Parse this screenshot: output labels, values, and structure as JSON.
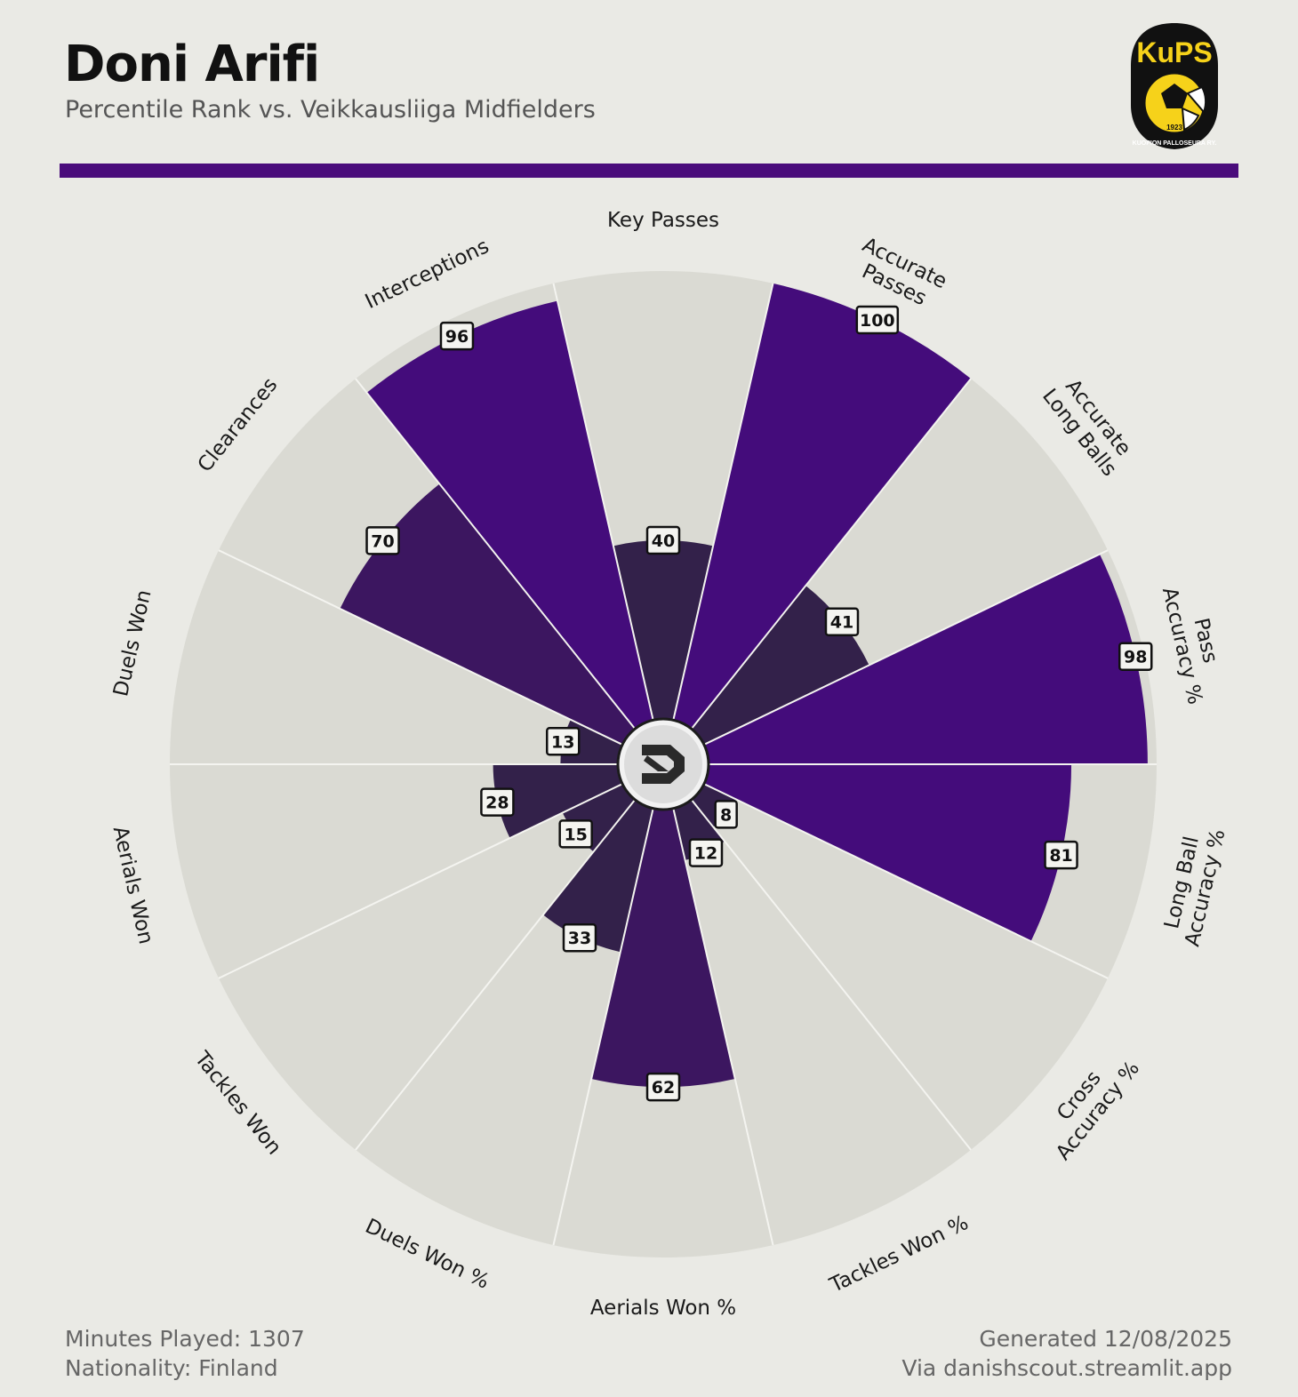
{
  "header": {
    "title": "Doni Arifi",
    "subtitle": "Percentile Rank vs. Veikkausliiga Midfielders",
    "club_logo_text": "KuPS",
    "club_logo_year": "1923",
    "club_logo_ring": "KUOPION PALLOSEURA RY."
  },
  "footer": {
    "minutes": "Minutes Played: 1307",
    "nationality": "Nationality: Finland",
    "generated": "Generated 12/08/2025",
    "via": "Via danishscout.streamlit.app"
  },
  "colors": {
    "background": "#EAEAE5",
    "slice_background": "#DADAD3",
    "accent": "#4A0C7B",
    "high": "#440C7B",
    "mid": "#3C1660",
    "low": "#33214A"
  },
  "chart_data": {
    "type": "pie",
    "subtype": "polar-bar",
    "title": "Percentile Rank vs. Veikkausliiga Midfielders",
    "rlim": [
      0,
      100
    ],
    "categories": [
      "Key Passes",
      "Accurate Passes",
      "Accurate Long Balls",
      "Pass Accuracy %",
      "Long Ball Accuracy %",
      "Cross Accuracy %",
      "Tackles Won %",
      "Aerials Won %",
      "Duels Won %",
      "Tackles Won",
      "Aerials Won",
      "Duels Won",
      "Clearances",
      "Interceptions"
    ],
    "label_lines": [
      [
        "Key Passes"
      ],
      [
        "Accurate",
        "Passes"
      ],
      [
        "Accurate",
        "Long Balls"
      ],
      [
        "Pass",
        "Accuracy %"
      ],
      [
        "Long Ball",
        "Accuracy %"
      ],
      [
        "Cross",
        "Accuracy %"
      ],
      [
        "Tackles Won %"
      ],
      [
        "Aerials Won %"
      ],
      [
        "Duels Won %"
      ],
      [
        "Tackles Won"
      ],
      [
        "Aerials Won"
      ],
      [
        "Duels Won"
      ],
      [
        "Clearances"
      ],
      [
        "Interceptions"
      ]
    ],
    "values": [
      40,
      100,
      41,
      98,
      81,
      8,
      12,
      62,
      33,
      15,
      28,
      13,
      70,
      96
    ]
  }
}
